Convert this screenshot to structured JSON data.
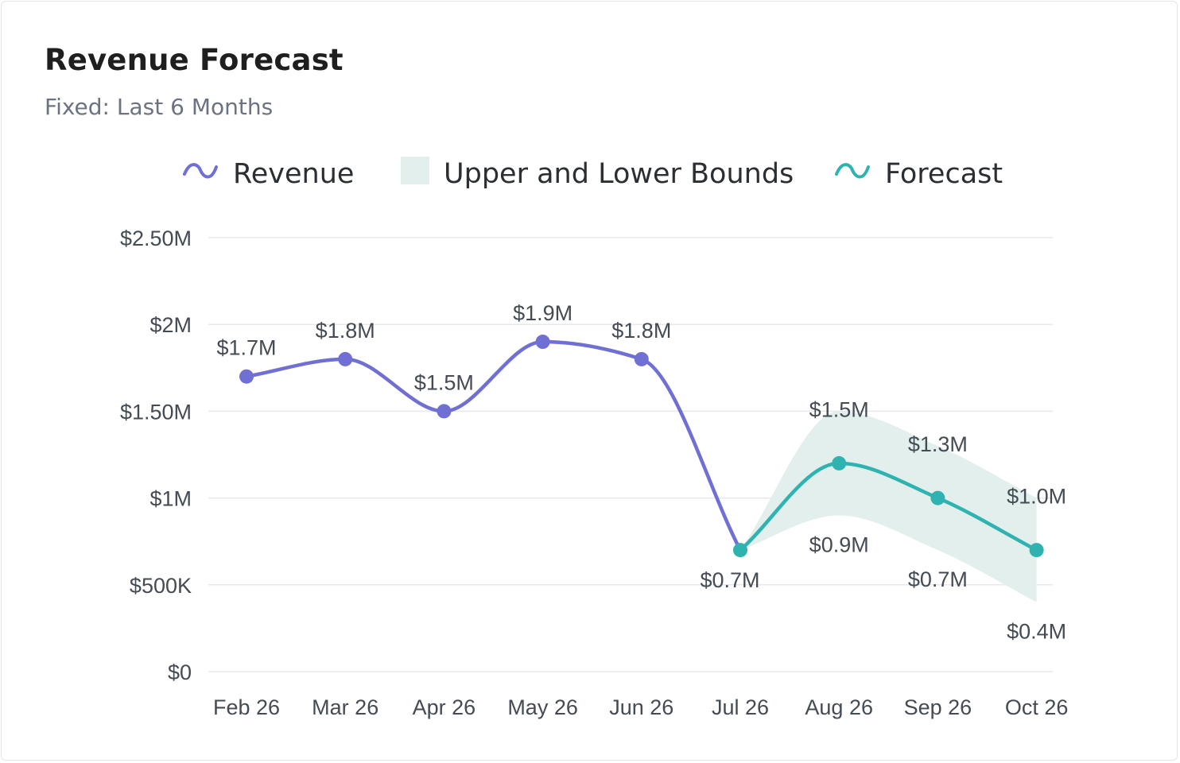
{
  "header": {
    "title": "Revenue Forecast",
    "subtitle": "Fixed: Last 6 Months"
  },
  "legend": [
    {
      "label": "Revenue",
      "icon": "wave-line-icon",
      "color": "#7070d4"
    },
    {
      "label": "Upper and Lower Bounds",
      "icon": "square-swatch-icon",
      "color": "#e2efed"
    },
    {
      "label": "Forecast",
      "icon": "wave-line-icon",
      "color": "#2fb3b0"
    }
  ],
  "chart_data": {
    "type": "line",
    "title": "Revenue Forecast",
    "subtitle": "Fixed: Last 6 Months",
    "categories": [
      "Feb 26",
      "Mar 26",
      "Apr 26",
      "May 26",
      "Jun 26",
      "Jul 26",
      "Aug 26",
      "Sep 26",
      "Oct 26"
    ],
    "y_ticks": [
      "$0",
      "$500K",
      "$1M",
      "$1.50M",
      "$2M",
      "$2.50M"
    ],
    "y_tick_values": [
      0,
      500000,
      1000000,
      1500000,
      2000000,
      2500000
    ],
    "ylim": [
      0,
      2500000
    ],
    "grid": "horizontal",
    "legend_position": "top",
    "series": [
      {
        "name": "Revenue",
        "color": "#7070d4",
        "points": [
          {
            "x": "Feb 26",
            "y": 1700000,
            "label": "$1.7M"
          },
          {
            "x": "Mar 26",
            "y": 1800000,
            "label": "$1.8M"
          },
          {
            "x": "Apr 26",
            "y": 1500000,
            "label": "$1.5M"
          },
          {
            "x": "May 26",
            "y": 1900000,
            "label": "$1.9M"
          },
          {
            "x": "Jun 26",
            "y": 1800000,
            "label": "$1.8M"
          },
          {
            "x": "Jul 26",
            "y": 700000,
            "label": "$0.7M"
          }
        ]
      },
      {
        "name": "Forecast",
        "color": "#2fb3b0",
        "points": [
          {
            "x": "Jul 26",
            "y": 700000
          },
          {
            "x": "Aug 26",
            "y": 1200000
          },
          {
            "x": "Sep 26",
            "y": 1000000
          },
          {
            "x": "Oct 26",
            "y": 700000
          }
        ]
      },
      {
        "name": "Upper and Lower Bounds",
        "type": "area-range",
        "color": "#e2efed",
        "points": [
          {
            "x": "Jul 26",
            "low": 700000,
            "high": 700000
          },
          {
            "x": "Aug 26",
            "low": 900000,
            "high": 1500000,
            "low_label": "$0.9M",
            "high_label": "$1.5M"
          },
          {
            "x": "Sep 26",
            "low": 700000,
            "high": 1300000,
            "low_label": "$0.7M",
            "high_label": "$1.3M"
          },
          {
            "x": "Oct 26",
            "low": 400000,
            "high": 1000000,
            "low_label": "$0.4M",
            "high_label": "$1.0M"
          }
        ]
      }
    ]
  }
}
